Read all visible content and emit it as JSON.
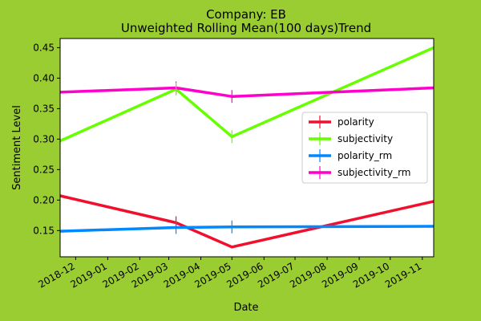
{
  "chart_data": {
    "type": "line",
    "title": "Company: EB",
    "subtitle": "Unweighted Rolling Mean(100 days)Trend",
    "xlabel": "Date",
    "ylabel": "Sentiment Level",
    "x_ticks": [
      "2018-12",
      "2019-01",
      "2019-02",
      "2019-03",
      "2019-04",
      "2019-05",
      "2019-06",
      "2019-07",
      "2019-08",
      "2019-09",
      "2019-10",
      "2019-11"
    ],
    "xlim": [
      "2018-11-16",
      "2019-11-12"
    ],
    "y_ticks": [
      0.15,
      0.2,
      0.25,
      0.3,
      0.35,
      0.4,
      0.45
    ],
    "ylim": [
      0.107,
      0.465
    ],
    "grid": false,
    "legend_position": "center-right",
    "background_color": "#9acd32",
    "plot_background": "#ffffff",
    "series": [
      {
        "name": "polarity",
        "color": "#f0102e",
        "x": [
          "2018-11-16",
          "2019-03-08",
          "2019-05-01",
          "2019-11-12"
        ],
        "y": [
          0.207,
          0.163,
          0.123,
          0.198
        ]
      },
      {
        "name": "subjectivity",
        "color": "#66ff00",
        "x": [
          "2018-11-16",
          "2019-03-08",
          "2019-05-01",
          "2019-11-12"
        ],
        "y": [
          0.297,
          0.382,
          0.304,
          0.45
        ]
      },
      {
        "name": "polarity_rm",
        "color": "#0088ff",
        "x": [
          "2018-11-16",
          "2019-03-08",
          "2019-05-01",
          "2019-11-12"
        ],
        "y": [
          0.149,
          0.155,
          0.156,
          0.157
        ]
      },
      {
        "name": "subjectivity_rm",
        "color": "#ff00cc",
        "x": [
          "2018-11-16",
          "2019-03-08",
          "2019-05-01",
          "2019-11-12"
        ],
        "y": [
          0.377,
          0.384,
          0.37,
          0.384
        ]
      }
    ],
    "error_markers": [
      {
        "series": "subjectivity_rm",
        "x": "2019-03-08"
      },
      {
        "series": "subjectivity_rm",
        "x": "2019-05-01"
      },
      {
        "series": "polarity",
        "x": "2019-03-08"
      },
      {
        "series": "polarity_rm",
        "x": "2019-03-08"
      },
      {
        "series": "polarity_rm",
        "x": "2019-05-01"
      },
      {
        "series": "subjectivity",
        "x": "2019-03-08"
      },
      {
        "series": "subjectivity",
        "x": "2019-05-01"
      }
    ]
  }
}
